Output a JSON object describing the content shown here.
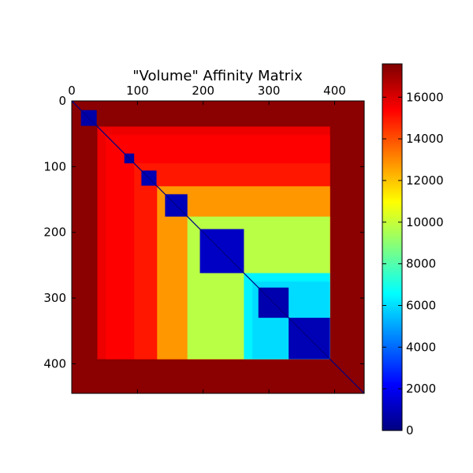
{
  "chart_data": {
    "type": "heatmap",
    "title": "\"Volume\" Affinity Matrix",
    "xlabel": "",
    "ylabel": "",
    "matrix_size": 445,
    "xlim": [
      0,
      445
    ],
    "ylim": [
      445,
      0
    ],
    "x_ticks": [
      0,
      100,
      200,
      300,
      400
    ],
    "x_tick_labels": [
      "0",
      "100",
      "200",
      "300",
      "400"
    ],
    "y_ticks": [
      0,
      100,
      200,
      300,
      400
    ],
    "y_tick_labels": [
      "0",
      "100",
      "200",
      "300",
      "400"
    ],
    "x_ticks_position": "top",
    "grid": false,
    "colormap": "jet",
    "value_range": [
      0,
      17600
    ],
    "colorbar": {
      "ticks": [
        0,
        2000,
        4000,
        6000,
        8000,
        10000,
        12000,
        14000,
        16000
      ],
      "tick_labels": [
        "0",
        "2000",
        "4000",
        "6000",
        "8000",
        "10000",
        "12000",
        "14000",
        "16000"
      ]
    },
    "regions": [
      {
        "range": [
          0,
          445
        ],
        "value": 17400
      },
      {
        "range": [
          39,
          393
        ],
        "value": 15700
      },
      {
        "range": [
          52,
          393
        ],
        "value": 15400
      },
      {
        "range": [
          95,
          393
        ],
        "value": 15000
      },
      {
        "range": [
          130,
          393
        ],
        "value": 12500
      },
      {
        "range": [
          131,
          393
        ],
        "value": 12800
      },
      {
        "range": [
          176,
          393
        ],
        "value": 9800
      },
      {
        "range": [
          262,
          393
        ],
        "value": 6400
      },
      {
        "range": [
          275,
          393
        ],
        "value": 6000
      }
    ],
    "diagonal_blocks": [
      {
        "range": [
          0,
          3
        ],
        "value": 200
      },
      {
        "range": [
          14,
          38
        ],
        "value": 700
      },
      {
        "range": [
          80,
          95
        ],
        "value": 600
      },
      {
        "range": [
          106,
          129
        ],
        "value": 900
      },
      {
        "range": [
          142,
          176
        ],
        "value": 1000
      },
      {
        "range": [
          195,
          262
        ],
        "value": 1200
      },
      {
        "range": [
          284,
          330
        ],
        "value": 800
      },
      {
        "range": [
          330,
          393
        ],
        "value": 900
      }
    ],
    "diagonal_value": 0
  }
}
